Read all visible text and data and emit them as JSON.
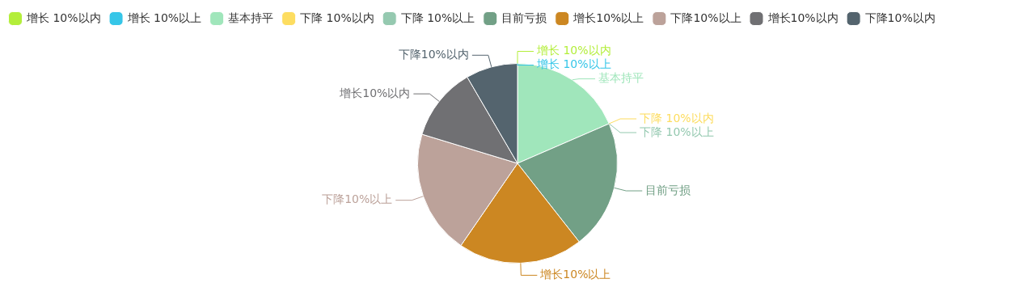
{
  "chart_data": {
    "type": "pie",
    "legend": "top left",
    "categories": [
      "增长 10%以内",
      "增长 10%以上",
      "基本持平",
      "下降 10%以内",
      "下降 10%以上",
      "目前亏损",
      "增长10%以上",
      "下降10%以上",
      "增长10%以内",
      "下降10%以内"
    ],
    "values": [
      0,
      0,
      18.5,
      0,
      0,
      20.9,
      20.2,
      20.1,
      11.9,
      8.4
    ],
    "colors": [
      "#b3ee3a",
      "#36c6e8",
      "#a0e6bb",
      "#fddd60",
      "#95c9b0",
      "#72a086",
      "#cc8722",
      "#bca29a",
      "#707073",
      "#54646e"
    ]
  }
}
